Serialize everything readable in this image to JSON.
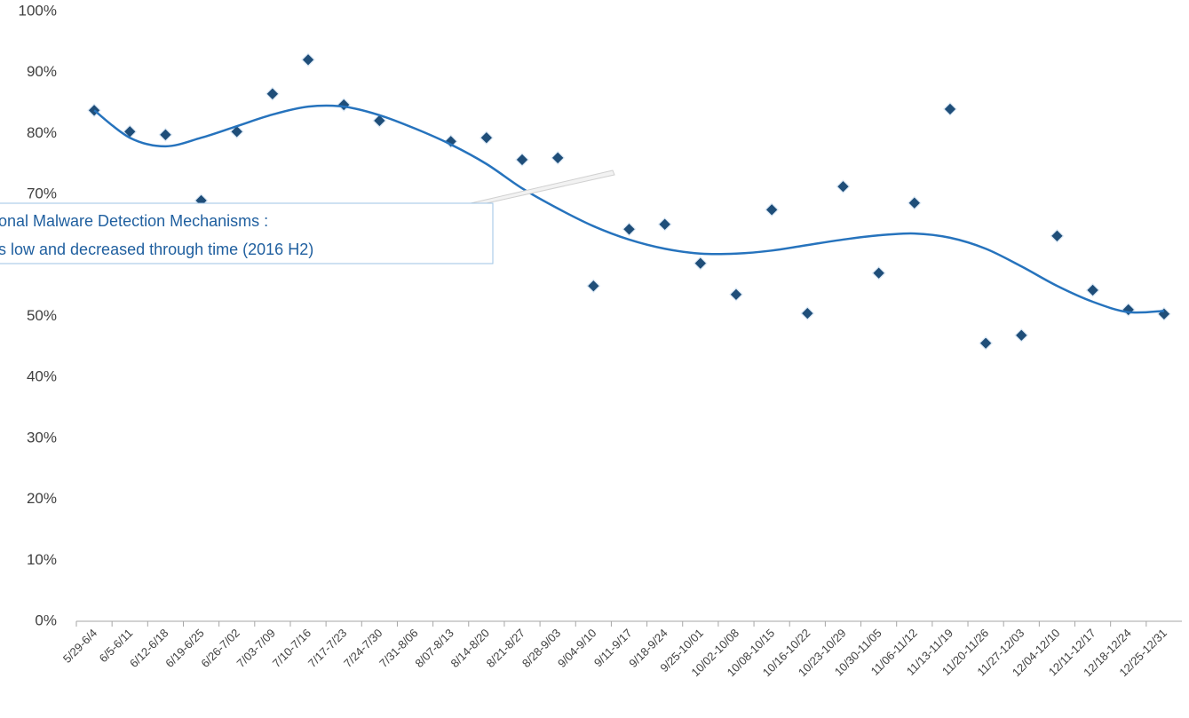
{
  "chart_data": {
    "type": "scatter",
    "categories": [
      "5/29-6/4",
      "6/5-6/11",
      "6/12-6/18",
      "6/19-6/25",
      "6/26-7/02",
      "7/03-7/09",
      "7/10-7/16",
      "7/17-7/23",
      "7/24-7/30",
      "7/31-8/06",
      "8/07-8/13",
      "8/14-8/20",
      "8/21-8/27",
      "8/28-9/03",
      "9/04-9/10",
      "9/11-9/17",
      "9/18-9/24",
      "9/25-10/01",
      "10/02-10/08",
      "10/08-10/15",
      "10/16-10/22",
      "10/23-10/29",
      "10/30-11/05",
      "11/06-11/12",
      "11/13-11/19",
      "11/20-11/26",
      "11/27-12/03",
      "12/04-12/10",
      "12/11-12/17",
      "12/18-12/24",
      "12/25-12/31"
    ],
    "series": [
      {
        "color": "#1f4e79",
        "values": [
          83.8,
          80.3,
          79.8,
          69.0,
          80.3,
          86.5,
          92.1,
          84.7,
          82.1,
          null,
          78.7,
          79.3,
          75.7,
          76.0,
          55.0,
          64.3,
          65.1,
          58.7,
          53.6,
          67.5,
          50.5,
          71.3,
          57.1,
          68.6,
          84.0,
          45.6,
          46.9,
          63.2,
          54.3,
          51.1,
          50.4
        ]
      },
      {
        "color": "#2673bd",
        "line": true,
        "values": [
          83.8,
          79.3,
          77.9,
          79.3,
          81.2,
          83.1,
          84.4,
          84.4,
          83.0,
          80.8,
          78.2,
          75.0,
          71.0,
          67.7,
          64.8,
          62.6,
          61.1,
          60.3,
          60.3,
          60.8,
          61.7,
          62.6,
          63.3,
          63.6,
          62.9,
          61.1,
          58.2,
          55.0,
          52.4,
          50.7,
          50.9
        ]
      }
    ],
    "ylim": [
      0,
      100
    ],
    "yticks": [
      {
        "value": 0,
        "label": "0%"
      },
      {
        "value": 10,
        "label": "10%"
      },
      {
        "value": 20,
        "label": "20%"
      },
      {
        "value": 30,
        "label": "30%"
      },
      {
        "value": 40,
        "label": "40%"
      },
      {
        "value": 50,
        "label": "50%"
      },
      {
        "value": 60,
        "label": "60%"
      },
      {
        "value": 70,
        "label": "70%"
      },
      {
        "value": 80,
        "label": "80%"
      },
      {
        "value": 90,
        "label": "90%"
      },
      {
        "value": 100,
        "label": "100%"
      }
    ],
    "grid": true,
    "annotation": [
      "onal Malware Detection Mechanisms :",
      "s low and decreased through time (2016 H2)"
    ]
  }
}
